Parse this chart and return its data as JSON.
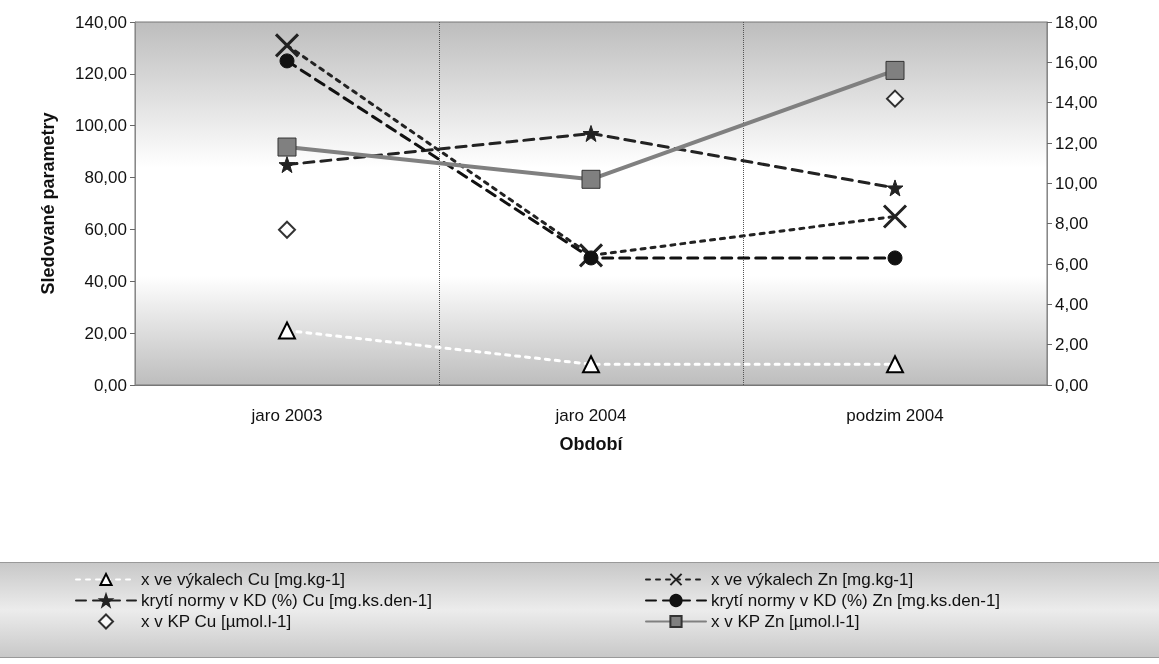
{
  "chart_data": {
    "type": "line",
    "xlabel": "Období",
    "ylabel": "Sledované parametry",
    "categories": [
      "jaro 2003",
      "jaro 2004",
      "podzim 2004"
    ],
    "ylim": [
      0,
      140
    ],
    "yticks": [
      {
        "value": 0,
        "label": "0,00"
      },
      {
        "value": 20,
        "label": "20,00"
      },
      {
        "value": 40,
        "label": "40,00"
      },
      {
        "value": 60,
        "label": "60,00"
      },
      {
        "value": 80,
        "label": "80,00"
      },
      {
        "value": 100,
        "label": "100,00"
      },
      {
        "value": 120,
        "label": "120,00"
      },
      {
        "value": 140,
        "label": "140,00"
      }
    ],
    "y2lim": [
      0,
      18
    ],
    "y2ticks": [
      {
        "value": 0,
        "label": "0,00"
      },
      {
        "value": 2,
        "label": "2,00"
      },
      {
        "value": 4,
        "label": "4,00"
      },
      {
        "value": 6,
        "label": "6,00"
      },
      {
        "value": 8,
        "label": "8,00"
      },
      {
        "value": 10,
        "label": "10,00"
      },
      {
        "value": 12,
        "label": "12,00"
      },
      {
        "value": 14,
        "label": "14,00"
      },
      {
        "value": 16,
        "label": "16,00"
      },
      {
        "value": 18,
        "label": "18,00"
      }
    ],
    "grid": "x",
    "legend": "bottom",
    "series": [
      {
        "name": "x ve výkalech Cu [mg.kg-1]",
        "color": "#ffffff",
        "marker": "triangle",
        "line_style": "dotted",
        "values": [
          21,
          8,
          8
        ]
      },
      {
        "name": "x ve výkalech Zn [mg.kg-1]",
        "color": "#222222",
        "marker": "cross",
        "line_style": "dotted",
        "values": [
          131,
          50,
          65
        ]
      },
      {
        "name": "krytí normy v KD (%) Cu [mg.ks.den-1]",
        "color": "#222222",
        "marker": "star",
        "line_style": "dashed",
        "values": [
          85,
          97,
          76
        ]
      },
      {
        "name": "krytí normy v KD (%) Zn [mg.ks.den-1]",
        "color": "#111111",
        "marker": "circle",
        "line_style": "dashed",
        "values": [
          125,
          49,
          49
        ]
      },
      {
        "name": "x v KP Cu [µmol.l-1]",
        "type": "scatter",
        "color": "#ffffff",
        "marker": "diamond",
        "axis": "y2",
        "values": [
          7.7,
          null,
          14.2
        ]
      },
      {
        "name": "x v KP Zn [µmol.l-1]",
        "color": "#808080",
        "marker": "square",
        "line_style": "solid",
        "axis": "y2",
        "values": [
          11.8,
          10.2,
          15.6
        ]
      }
    ]
  }
}
